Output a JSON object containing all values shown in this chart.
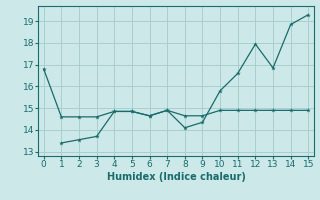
{
  "line1_x": [
    0,
    1,
    2,
    3,
    4,
    5,
    6,
    7,
    8,
    9,
    10,
    11,
    12,
    13,
    14,
    15
  ],
  "line1_y": [
    16.8,
    14.6,
    14.6,
    14.6,
    14.85,
    14.85,
    14.65,
    14.9,
    14.65,
    14.65,
    14.9,
    14.9,
    14.9,
    14.9,
    14.9,
    14.9
  ],
  "line2_x": [
    1,
    2,
    3,
    4,
    5,
    6,
    7,
    8,
    9,
    10,
    11,
    12,
    13,
    14,
    15
  ],
  "line2_y": [
    13.4,
    13.55,
    13.7,
    14.85,
    14.85,
    14.65,
    14.9,
    14.1,
    14.35,
    15.8,
    16.6,
    17.95,
    16.85,
    18.85,
    19.3
  ],
  "line_color": "#1a6b6b",
  "bg_color": "#cce8e8",
  "grid_color": "#aacece",
  "xlabel": "Humidex (Indice chaleur)",
  "xlim": [
    -0.3,
    15.3
  ],
  "ylim": [
    12.8,
    19.7
  ],
  "xticks": [
    0,
    1,
    2,
    3,
    4,
    5,
    6,
    7,
    8,
    9,
    10,
    11,
    12,
    13,
    14,
    15
  ],
  "yticks": [
    13,
    14,
    15,
    16,
    17,
    18,
    19
  ],
  "label_fontsize": 7,
  "tick_fontsize": 6.5
}
